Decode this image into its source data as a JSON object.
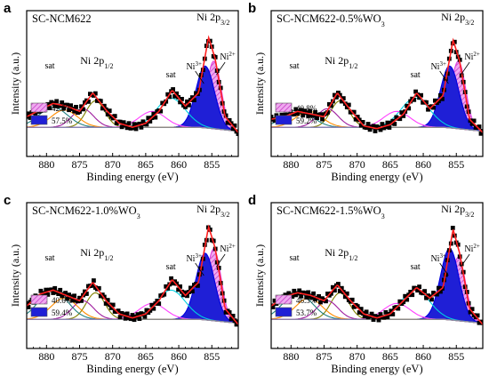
{
  "chart_data": [
    {
      "panel": "a",
      "type": "line",
      "title": "SC-NCM622",
      "title_sub": "",
      "xlabel": "Binding energy (eV)",
      "ylabel": "Intensity (a.u.)",
      "xlim": [
        883,
        851
      ],
      "xticks": [
        880,
        875,
        870,
        865,
        860,
        855
      ],
      "reversed_x": true,
      "labels": {
        "ni_main": "Ni 2p",
        "ni_main_sub": "3/2",
        "ni_sec": "Ni 2p",
        "ni_sec_sub": "1/2",
        "sat": "sat",
        "ni3": "Ni",
        "ni3_sup": "3+",
        "ni2": "Ni",
        "ni2_sup": "2+"
      },
      "legend": [
        {
          "label": "42.5%",
          "color": "#e070e0",
          "pattern": "hatch"
        },
        {
          "label": "57.5%",
          "color": "#1f1fd6",
          "pattern": "solid"
        }
      ],
      "peaks": {
        "a": 32,
        "b": 26,
        "c": 22,
        "sat1": 15,
        "sat2": 13,
        "s1": 20,
        "s2": 14,
        "m": 12
      },
      "x": [
        883,
        881,
        879,
        877,
        875,
        873,
        871,
        869,
        867,
        865,
        863,
        861,
        859,
        857,
        855.5,
        854.5,
        853,
        851
      ],
      "intensity": [
        22,
        27,
        32,
        30,
        26,
        40,
        27,
        17,
        14,
        17,
        26,
        42,
        30,
        40,
        82,
        66,
        22,
        10
      ]
    },
    {
      "panel": "b",
      "type": "line",
      "title": "SC-NCM622-0.5%WO",
      "title_sub": "3",
      "xlabel": "Binding energy (eV)",
      "ylabel": "Intensity (a.u.)",
      "xlim": [
        883,
        851
      ],
      "xticks": [
        880,
        875,
        870,
        865,
        860,
        855
      ],
      "reversed_x": true,
      "labels": {
        "ni_main": "Ni 2p",
        "ni_main_sub": "3/2",
        "ni_sec": "Ni 2p",
        "ni_sec_sub": "1/2",
        "sat": "sat",
        "ni3": "Ni",
        "ni3_sup": "3+",
        "ni2": "Ni",
        "ni2_sup": "2+"
      },
      "legend": [
        {
          "label": "40.8%",
          "color": "#e070e0",
          "pattern": "hatch"
        },
        {
          "label": "59.2%",
          "color": "#1f1fd6",
          "pattern": "solid"
        }
      ],
      "peaks": {
        "a": 32,
        "b": 26,
        "c": 22,
        "sat1": 13,
        "sat2": 12,
        "s1": 20,
        "s2": 14,
        "m": 12
      },
      "x": [
        883,
        881,
        879,
        877,
        875,
        873,
        871,
        869,
        867,
        865,
        863,
        861,
        859,
        857,
        855.5,
        854.5,
        853,
        851
      ],
      "intensity": [
        20,
        22,
        26,
        24,
        22,
        40,
        27,
        15,
        13,
        16,
        24,
        40,
        28,
        38,
        80,
        64,
        20,
        10
      ]
    },
    {
      "panel": "c",
      "type": "line",
      "title": "SC-NCM622-1.0%WO",
      "title_sub": "3",
      "xlabel": "Binding energy (eV)",
      "ylabel": "Intensity (a.u.)",
      "xlim": [
        883,
        851
      ],
      "xticks": [
        880,
        875,
        870,
        865,
        860,
        855
      ],
      "reversed_x": true,
      "labels": {
        "ni_main": "Ni 2p",
        "ni_main_sub": "3/2",
        "ni_sec": "Ni 2p",
        "ni_sec_sub": "1/2",
        "sat": "sat",
        "ni3": "Ni",
        "ni3_sup": "3+",
        "ni2": "Ni",
        "ni2_sup": "2+"
      },
      "legend": [
        {
          "label": "40.6%",
          "color": "#e070e0",
          "pattern": "hatch"
        },
        {
          "label": "59.4%",
          "color": "#1f1fd6",
          "pattern": "solid"
        }
      ],
      "peaks": {
        "a": 34,
        "b": 28,
        "c": 22,
        "sat1": 22,
        "sat2": 16,
        "s1": 20,
        "s2": 14,
        "m": 12
      },
      "x": [
        883,
        881,
        879,
        877,
        875,
        873,
        871,
        869,
        867,
        865,
        863,
        861,
        859,
        857,
        855.5,
        854.5,
        853,
        851
      ],
      "intensity": [
        24,
        33,
        36,
        32,
        28,
        42,
        28,
        18,
        15,
        18,
        28,
        44,
        32,
        42,
        84,
        68,
        22,
        10
      ]
    },
    {
      "panel": "d",
      "type": "line",
      "title": "SC-NCM622-1.5%WO",
      "title_sub": "3",
      "xlabel": "Binding energy (eV)",
      "ylabel": "Intensity (a.u.)",
      "xlim": [
        883,
        851
      ],
      "xticks": [
        880,
        875,
        870,
        865,
        860,
        855
      ],
      "reversed_x": true,
      "labels": {
        "ni_main": "Ni 2p",
        "ni_main_sub": "3/2",
        "ni_sec": "Ni 2p",
        "ni_sec_sub": "1/2",
        "sat": "sat",
        "ni3": "Ni",
        "ni3_sup": "3+",
        "ni2": "Ni",
        "ni2_sup": "2+"
      },
      "legend": [
        {
          "label": "46.3%",
          "color": "#e070e0",
          "pattern": "hatch"
        },
        {
          "label": "53.7%",
          "color": "#1f1fd6",
          "pattern": "solid"
        }
      ],
      "peaks": {
        "a": 30,
        "b": 30,
        "c": 22,
        "sat1": 20,
        "sat2": 16,
        "s1": 20,
        "s2": 14,
        "m": 12
      },
      "x": [
        883,
        881,
        879,
        877,
        875,
        873,
        871,
        869,
        867,
        865,
        863,
        861,
        859,
        857,
        855.5,
        854.5,
        853,
        851
      ],
      "intensity": [
        24,
        31,
        34,
        32,
        28,
        40,
        28,
        18,
        15,
        18,
        28,
        38,
        30,
        38,
        82,
        64,
        22,
        10
      ]
    }
  ]
}
